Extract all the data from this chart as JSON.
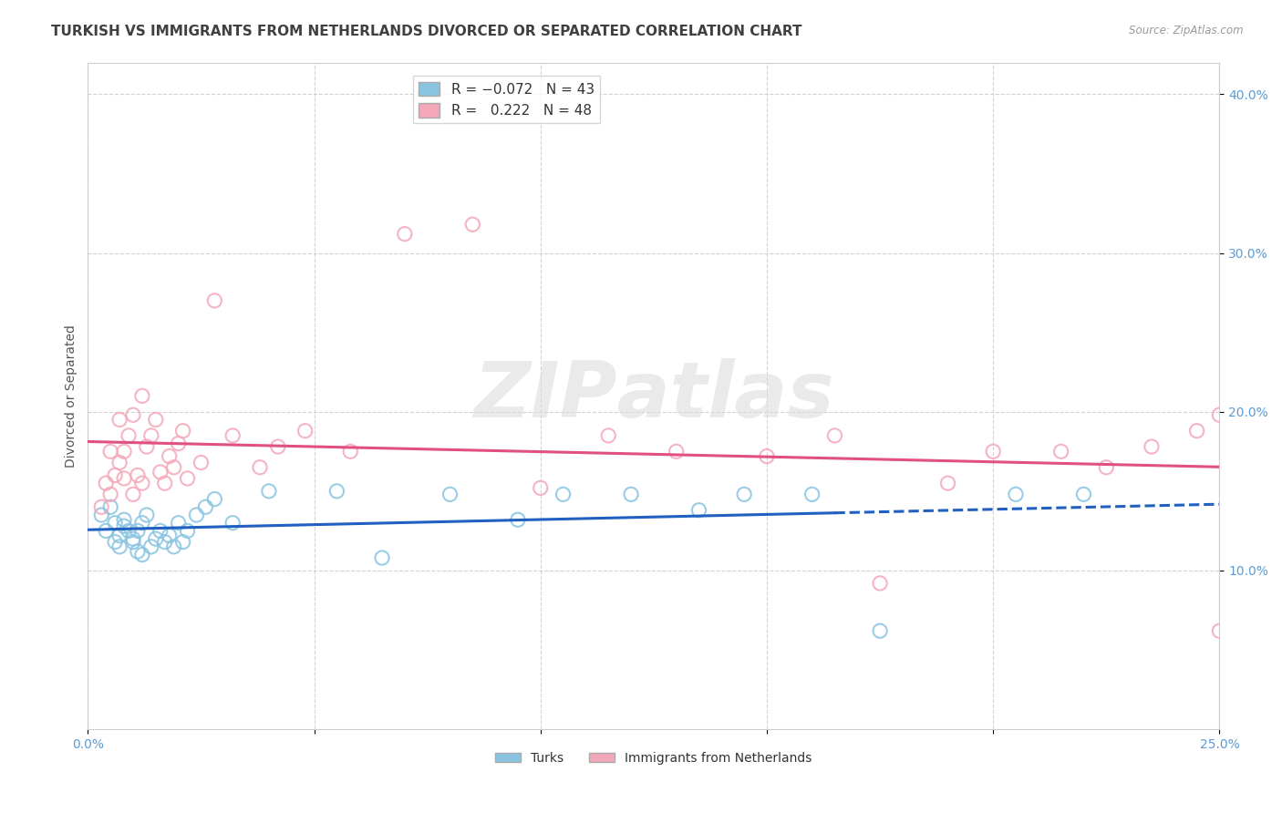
{
  "title": "TURKISH VS IMMIGRANTS FROM NETHERLANDS DIVORCED OR SEPARATED CORRELATION CHART",
  "source": "Source: ZipAtlas.com",
  "ylabel": "Divorced or Separated",
  "xlim": [
    0.0,
    0.25
  ],
  "ylim": [
    0.0,
    0.42
  ],
  "x_ticks": [
    0.0,
    0.05,
    0.1,
    0.15,
    0.2,
    0.25
  ],
  "x_tick_labels": [
    "0.0%",
    "",
    "",
    "",
    "",
    "25.0%"
  ],
  "y_ticks": [
    0.1,
    0.2,
    0.3,
    0.4
  ],
  "y_tick_labels": [
    "10.0%",
    "20.0%",
    "30.0%",
    "40.0%"
  ],
  "turks_color": "#89C4E1",
  "netherlands_color": "#F4A7B9",
  "turks_line_color": "#2060C0",
  "netherlands_line_color": "#E05080",
  "background_color": "#ffffff",
  "grid_color": "#cccccc",
  "title_fontsize": 11,
  "axis_label_fontsize": 10,
  "tick_fontsize": 10,
  "turks_x": [
    0.003,
    0.004,
    0.005,
    0.006,
    0.006,
    0.007,
    0.007,
    0.008,
    0.008,
    0.009,
    0.01,
    0.01,
    0.011,
    0.011,
    0.012,
    0.012,
    0.013,
    0.014,
    0.015,
    0.016,
    0.017,
    0.018,
    0.019,
    0.02,
    0.021,
    0.022,
    0.024,
    0.026,
    0.028,
    0.032,
    0.04,
    0.055,
    0.065,
    0.08,
    0.095,
    0.105,
    0.12,
    0.135,
    0.145,
    0.16,
    0.175,
    0.205,
    0.22
  ],
  "turks_y": [
    0.135,
    0.125,
    0.14,
    0.13,
    0.118,
    0.122,
    0.115,
    0.128,
    0.132,
    0.125,
    0.118,
    0.12,
    0.112,
    0.125,
    0.11,
    0.13,
    0.135,
    0.115,
    0.12,
    0.125,
    0.118,
    0.122,
    0.115,
    0.13,
    0.118,
    0.125,
    0.135,
    0.14,
    0.145,
    0.13,
    0.15,
    0.15,
    0.108,
    0.148,
    0.132,
    0.148,
    0.148,
    0.138,
    0.148,
    0.148,
    0.062,
    0.148,
    0.148
  ],
  "netherlands_x": [
    0.003,
    0.004,
    0.005,
    0.005,
    0.006,
    0.007,
    0.007,
    0.008,
    0.008,
    0.009,
    0.01,
    0.01,
    0.011,
    0.012,
    0.012,
    0.013,
    0.014,
    0.015,
    0.016,
    0.017,
    0.018,
    0.019,
    0.02,
    0.021,
    0.022,
    0.025,
    0.028,
    0.032,
    0.038,
    0.042,
    0.048,
    0.058,
    0.07,
    0.085,
    0.1,
    0.115,
    0.13,
    0.15,
    0.165,
    0.175,
    0.19,
    0.2,
    0.215,
    0.225,
    0.235,
    0.245,
    0.25,
    0.25
  ],
  "netherlands_y": [
    0.14,
    0.155,
    0.175,
    0.148,
    0.16,
    0.195,
    0.168,
    0.175,
    0.158,
    0.185,
    0.148,
    0.198,
    0.16,
    0.21,
    0.155,
    0.178,
    0.185,
    0.195,
    0.162,
    0.155,
    0.172,
    0.165,
    0.18,
    0.188,
    0.158,
    0.168,
    0.27,
    0.185,
    0.165,
    0.178,
    0.188,
    0.175,
    0.312,
    0.318,
    0.152,
    0.185,
    0.175,
    0.172,
    0.185,
    0.092,
    0.155,
    0.175,
    0.175,
    0.165,
    0.178,
    0.188,
    0.198,
    0.062
  ]
}
